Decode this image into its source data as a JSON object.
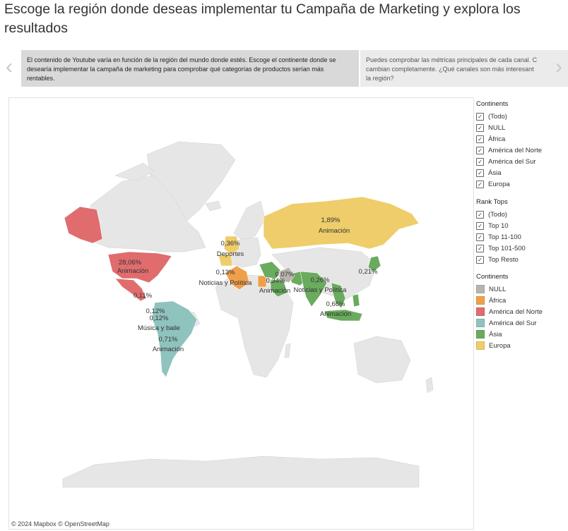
{
  "title": "Escoge la región donde deseas implementar tu Campaña de Marketing y explora los resultados",
  "carousel": {
    "slide1": "El contenido de Youtube varía en función de la región del mundo donde estés.  Escoge el continente donde se desearía implementar la campaña de marketing para comprobar qué categorías de productos serían más rentables.",
    "slide2_line1": "Puedes comprobar las métricas principales de cada canal. C",
    "slide2_line2": "cambian completamente. ¿Qué canales son más interesant",
    "slide2_line3": "la región?",
    "prev_icon": "chevron-left-icon",
    "next_icon": "chevron-right-icon"
  },
  "map": {
    "attribution": "© 2024 Mapbox  © OpenStreetMap",
    "labels": {
      "na_pct": "28,06%",
      "na_cat": "Animación",
      "na_small": "0,11%",
      "sa_pct1": "0,12%",
      "sa_pct2": "0,12%",
      "sa_cat1": "Música y baile",
      "sa_pct3": "0,71%",
      "sa_cat2": "Animación",
      "eu_pct1": "0,36%",
      "eu_cat1": "Deportes",
      "eu_pct2": "0,13%",
      "eu_cat2": "Noticias y Política",
      "ru_pct": "1,89%",
      "ru_cat": "Animación",
      "af_pct": "0,34%",
      "af_cat": "Animación",
      "null_pct": "0,07%",
      "in_pct": "0,26%",
      "in_cat": "Noticias y Política",
      "jp_pct": "0,21%",
      "sea_pct": "0,66%",
      "sea_cat": "Animación"
    }
  },
  "filters": {
    "continents": {
      "title": "Continents",
      "items": [
        "(Todo)",
        "NULL",
        "África",
        "América del Norte",
        "América del Sur",
        "Ásia",
        "Europa"
      ]
    },
    "rank": {
      "title": "Rank Tops",
      "items": [
        "(Todo)",
        "Top 10",
        "Top 11-100",
        "Top 101-500",
        "Top Resto"
      ]
    }
  },
  "color_legend": {
    "title": "Continents",
    "items": [
      {
        "label": "NULL",
        "color": "#b9b4ae"
      },
      {
        "label": "África",
        "color": "#f0a04b"
      },
      {
        "label": "América del Norte",
        "color": "#e06c6e"
      },
      {
        "label": "América del Sur",
        "color": "#8fc3bd"
      },
      {
        "label": "Ásia",
        "color": "#6aab5e"
      },
      {
        "label": "Europa",
        "color": "#eecd6a"
      }
    ]
  }
}
